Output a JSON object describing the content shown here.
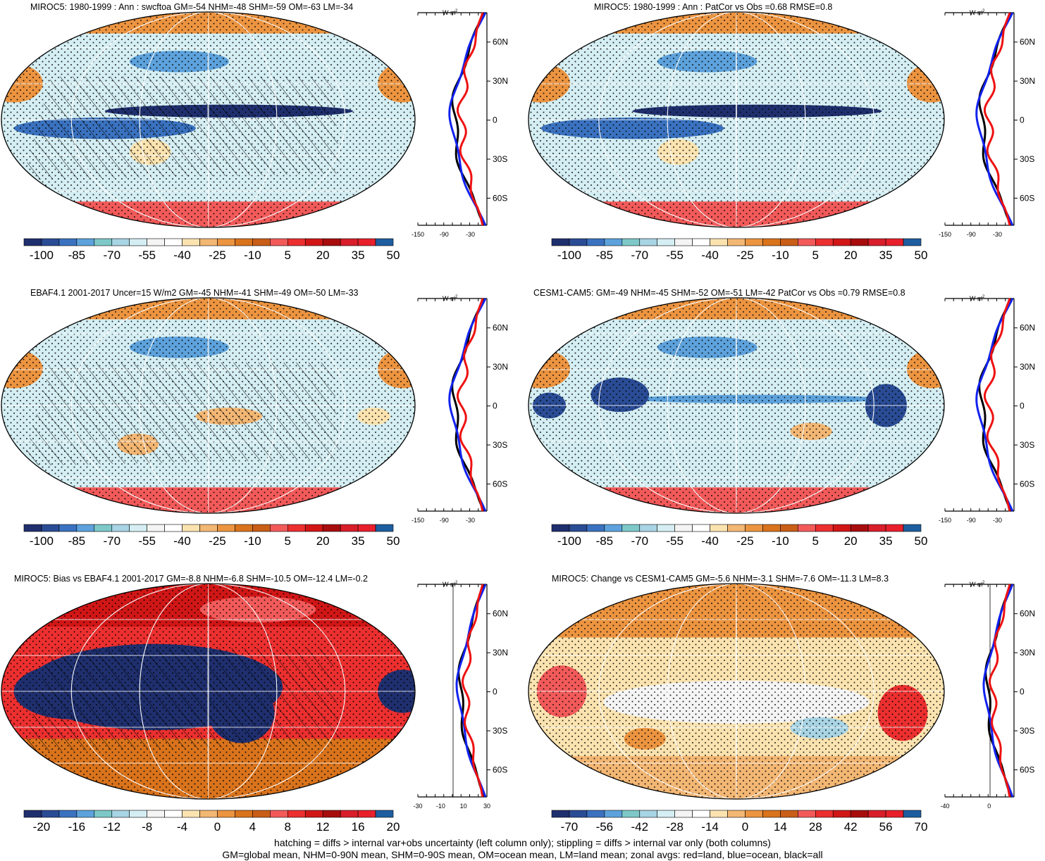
{
  "panels": [
    {
      "title": "MIROC5: 1980-1999 : Ann : swcftoa GM=-54 NHM=-48 SHM=-59 OM=-63 LM=-34",
      "scale": "abs",
      "hatch": true,
      "pattern": "model"
    },
    {
      "title": "MIROC5: 1980-1999 : Ann : PatCor vs Obs =0.68 RMSE=0.8",
      "scale": "abs",
      "hatch": false,
      "pattern": "model"
    },
    {
      "title": "EBAF4.1 2001-2017 Uncer=15 W/m2 GM=-45 NHM=-41 SHM=-49 OM=-50 LM=-33",
      "scale": "abs",
      "hatch": true,
      "pattern": "obs"
    },
    {
      "title": "CESM1-CAM5: GM=-49 NHM=-45 SHM=-52 OM=-51 LM=-42 PatCor vs Obs =0.79 RMSE=0.8",
      "scale": "abs",
      "hatch": false,
      "pattern": "cesm"
    },
    {
      "title": "MIROC5: Bias vs EBAF4.1 2001-2017 GM=-8.8 NHM=-6.8 SHM=-10.5 OM=-12.4 LM=-0.2",
      "scale": "bias",
      "hatch": true,
      "pattern": "bias"
    },
    {
      "title": "MIROC5: Change vs CESM1-CAM5 GM=-5.6 NHM=-3.1 SHM=-7.6 OM=-11.3 LM=8.3",
      "scale": "change",
      "hatch": false,
      "pattern": "change"
    }
  ],
  "colorbars": {
    "abs": {
      "labels": [
        "-100",
        "-85",
        "-70",
        "-55",
        "-40",
        "-25",
        "-10",
        "5",
        "20",
        "35",
        "50"
      ]
    },
    "bias": {
      "labels": [
        "-20",
        "-16",
        "-12",
        "-8",
        "-4",
        "0",
        "4",
        "8",
        "12",
        "16",
        "20"
      ]
    },
    "change": {
      "labels": [
        "-70",
        "-56",
        "-42",
        "-28",
        "-14",
        "0",
        "14",
        "28",
        "42",
        "56",
        "70"
      ]
    }
  },
  "palette": [
    "#1f2f6e",
    "#2a4c95",
    "#3a72c0",
    "#5da2dc",
    "#7ec8c8",
    "#a8d4e4",
    "#d4eef3",
    "#f4f4f4",
    "#ffffff",
    "#fbe3b0",
    "#f3b774",
    "#ec9440",
    "#d9731c",
    "#c85e17",
    "#f25a5a",
    "#ec2f2f",
    "#d11616",
    "#a80d0d",
    "#d81e2a",
    "#e8202c",
    "#1e5ea0"
  ],
  "zonal": {
    "units_main": "W m",
    "units_sup": "-2",
    "lat_labels": [
      "60N",
      "30N",
      "0",
      "30S",
      "60S"
    ],
    "abs_ticks": [
      "-150",
      "-90",
      "-30"
    ],
    "bias_ticks": [
      "-30",
      "-10",
      "10",
      "30"
    ],
    "change_ticks": [
      "-40",
      "0"
    ],
    "colors": {
      "land": "#ee1111",
      "ocean": "#1122ee",
      "all": "#000000"
    }
  },
  "caption": {
    "line1": "hatching = diffs > internal var+obs uncertainty (left column only); stippling = diffs > internal var only (both columns)",
    "line2": "GM=global mean, NHM=0-90N mean, SHM=0-90S mean, OM=ocean mean, LM=land mean; zonal avgs: red=land, blue=ocean, black=all"
  },
  "chart_data": [
    {
      "type": "heatmap",
      "title": "MIROC5: 1980-1999 : Ann : swcftoa GM=-54 NHM=-48 SHM=-59 OM=-63 LM=-34",
      "GM": -54,
      "NHM": -48,
      "SHM": -59,
      "OM": -63,
      "LM": -34,
      "colorbar": [
        -100,
        -85,
        -70,
        -55,
        -40,
        -25,
        -10,
        5,
        20,
        35,
        50
      ]
    },
    {
      "type": "heatmap",
      "title": "MIROC5: 1980-1999 : Ann : PatCor vs Obs =0.68 RMSE=0.8",
      "PatCor": 0.68,
      "RMSE": 0.8,
      "colorbar": [
        -100,
        -85,
        -70,
        -55,
        -40,
        -25,
        -10,
        5,
        20,
        35,
        50
      ]
    },
    {
      "type": "heatmap",
      "title": "EBAF4.1 2001-2017 Uncer=15 W/m2 GM=-45 NHM=-41 SHM=-49 OM=-50 LM=-33",
      "GM": -45,
      "NHM": -41,
      "SHM": -49,
      "OM": -50,
      "LM": -33,
      "colorbar": [
        -100,
        -85,
        -70,
        -55,
        -40,
        -25,
        -10,
        5,
        20,
        35,
        50
      ]
    },
    {
      "type": "heatmap",
      "title": "CESM1-CAM5: GM=-49 NHM=-45 SHM=-52 OM=-51 LM=-42 PatCor vs Obs =0.79 RMSE=0.8",
      "GM": -49,
      "NHM": -45,
      "SHM": -52,
      "OM": -51,
      "LM": -42,
      "PatCor": 0.79,
      "RMSE": 0.8,
      "colorbar": [
        -100,
        -85,
        -70,
        -55,
        -40,
        -25,
        -10,
        5,
        20,
        35,
        50
      ]
    },
    {
      "type": "heatmap",
      "title": "MIROC5: Bias vs EBAF4.1 2001-2017 GM=-8.8 NHM=-6.8 SHM=-10.5 OM=-12.4 LM=-0.2",
      "GM": -8.8,
      "NHM": -6.8,
      "SHM": -10.5,
      "OM": -12.4,
      "LM": -0.2,
      "colorbar": [
        -20,
        -16,
        -12,
        -8,
        -4,
        0,
        4,
        8,
        12,
        16,
        20
      ]
    },
    {
      "type": "heatmap",
      "title": "MIROC5: Change vs CESM1-CAM5 GM=-5.6 NHM=-3.1 SHM=-7.6 OM=-11.3 LM=8.3",
      "GM": -5.6,
      "NHM": -3.1,
      "SHM": -7.6,
      "OM": -11.3,
      "LM": 8.3,
      "colorbar": [
        -70,
        -56,
        -42,
        -28,
        -14,
        0,
        14,
        28,
        42,
        56,
        70
      ]
    }
  ]
}
